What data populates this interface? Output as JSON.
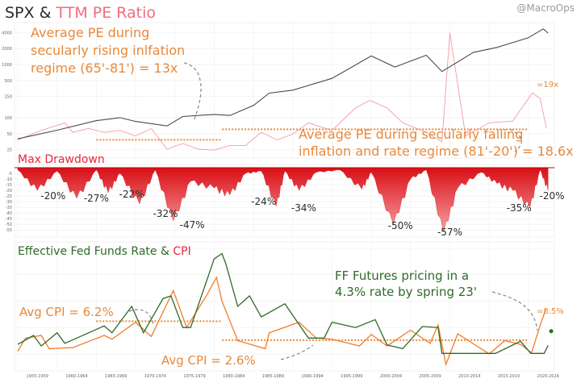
{
  "watermark": "@MacroOps",
  "colors": {
    "spx": "#4a4a4a",
    "pe": "#f28a96",
    "drawdown": "#e0161c",
    "fedfunds": "#2e6b24",
    "cpi": "#f07d2a",
    "annotation_orange": "#e8893a",
    "title_red": "#f06d7a"
  },
  "panel1": {
    "title_part1": "SPX & ",
    "title_part2": "TTM PE Ratio",
    "left_ticks": [
      "4000",
      "2000",
      "1000",
      "500",
      "250",
      "100",
      "50",
      "25"
    ],
    "annotation1": [
      "Average PE during",
      "secularly rising inlfation",
      "regime (65'-81') = 13x"
    ],
    "annotation2": [
      "Average PE during secularly falling",
      "inflation and rate regime (81'-20') = 18.6x"
    ],
    "current_pe": "=19x"
  },
  "panel2": {
    "title": "Max Drawdown",
    "left_ticks": [
      "-5",
      "-10",
      "-15",
      "-20",
      "-25",
      "-30",
      "-35",
      "-40",
      "-45",
      "-50",
      "-55"
    ],
    "labels": [
      "-20%",
      "-27%",
      "-22%",
      "-32%",
      "-47%",
      "-24%",
      "-34%",
      "-50%",
      "-57%",
      "-35%",
      "-20%"
    ]
  },
  "panel3": {
    "title_part1": "Effective Fed Funds Rate & ",
    "title_part2": "CPI",
    "annotation_ff": [
      "FF Futures pricing in a",
      "4.3% rate by spring 23'"
    ],
    "avg_cpi_1": "Avg CPI = 6.2%",
    "avg_cpi_2": "Avg CPI = 2.6%",
    "current_cpi": "=8.5%",
    "x_ticks": [
      "1955-1959",
      "1960-1964",
      "1965-1969",
      "1970-1974",
      "1975-1979",
      "1980-1984",
      "1985-1989",
      "1990-1994",
      "1995-1999",
      "2000-2004",
      "2005-2009",
      "2010-2014",
      "2015-2019",
      "2020-2024"
    ]
  },
  "chart_data": [
    {
      "type": "line",
      "title": "SPX & TTM PE Ratio",
      "log_scale": true,
      "series": [
        {
          "name": "SPX",
          "x": [
            1955,
            1960,
            1965,
            1968,
            1970,
            1974,
            1976,
            1980,
            1982,
            1985,
            1987,
            1990,
            1995,
            2000,
            2003,
            2007,
            2009,
            2013,
            2016,
            2020,
            2021.9,
            2022.5
          ],
          "values": [
            40,
            58,
            88,
            100,
            85,
            70,
            105,
            115,
            110,
            170,
            290,
            330,
            550,
            1450,
            900,
            1500,
            740,
            1700,
            2100,
            3200,
            4700,
            3900
          ]
        },
        {
          "name": "TTM PE Ratio",
          "x": [
            1955,
            1958,
            1961,
            1962,
            1964,
            1966,
            1968,
            1970,
            1972,
            1974,
            1976,
            1978,
            1980,
            1982,
            1984,
            1986,
            1988,
            1990,
            1992,
            1995,
            1998,
            1999.8,
            2002,
            2004,
            2007,
            2009,
            2010,
            2012,
            2015,
            2018,
            2020.5,
            2021.5,
            2022.3
          ],
          "values": [
            13,
            18,
            22,
            17,
            19,
            17,
            18,
            15,
            19,
            8,
            11,
            8,
            7.5,
            10,
            10,
            17,
            13,
            16,
            22,
            18,
            30,
            34,
            30,
            22,
            17,
            12,
            70,
            15,
            22,
            23,
            38,
            35,
            19
          ]
        }
      ],
      "reference_lines": [
        {
          "label": "Average PE 65'-81'",
          "y": 13,
          "x": [
            1965,
            1981
          ]
        },
        {
          "label": "Average PE 81'-20'",
          "y": 18.6,
          "x": [
            1981,
            2020
          ]
        }
      ],
      "annotations": [
        "Average PE during secularly rising inlfation regime (65'-81') = 13x",
        "Average PE during secularly falling inflation and rate regime (81'-20') = 18.6x",
        "=19x"
      ]
    },
    {
      "type": "area",
      "title": "Max Drawdown",
      "x": [
        1955,
        1957.5,
        1960,
        1962.5,
        1965,
        1966.5,
        1968,
        1970.5,
        1972.5,
        1974.8,
        1977,
        1980,
        1982,
        1984,
        1986,
        1987.9,
        1989,
        1990.8,
        1993,
        1996,
        1998.8,
        2000,
        2002.8,
        2005,
        2007,
        2009.2,
        2011,
        2014,
        2016,
        2018,
        2020.2,
        2021.5,
        2022.5
      ],
      "values": [
        -2,
        -20,
        -3,
        -27,
        -2,
        -22,
        -5,
        -32,
        -2,
        -47,
        -12,
        -18,
        -24,
        -5,
        -3,
        -34,
        -3,
        -20,
        -4,
        -2,
        -19,
        -4,
        -50,
        -10,
        -2,
        -57,
        -18,
        -4,
        -14,
        -20,
        -35,
        -2,
        -20
      ],
      "labels": [
        "-20%",
        "-27%",
        "-22%",
        "-32%",
        "-47%",
        "-24%",
        "-34%",
        "-50%",
        "-57%",
        "-35%",
        "-20%"
      ],
      "ylim": [
        -57,
        0
      ]
    },
    {
      "type": "line",
      "title": "Effective Fed Funds Rate & CPI",
      "series": [
        {
          "name": "Effective Fed Funds Rate",
          "x": [
            1955,
            1957,
            1958,
            1960,
            1961,
            1966,
            1967,
            1969.5,
            1971,
            1973.5,
            1974.5,
            1976,
            1977,
            1980,
            1981,
            1981.5,
            1983,
            1984.5,
            1986,
            1989,
            1992,
            1994,
            1995,
            1998,
            2000.5,
            2002,
            2004,
            2006.5,
            2008.5,
            2009,
            2015.8,
            2019,
            2020.3,
            2022,
            2022.5
          ],
          "values": [
            1.8,
            3.5,
            1.5,
            4,
            2,
            5.3,
            4,
            9,
            4,
            10.5,
            11,
            5,
            5,
            18,
            19,
            17,
            9,
            11,
            7,
            9.5,
            3,
            3,
            6,
            5,
            6.5,
            1.7,
            1,
            5.2,
            5,
            0.1,
            0.1,
            2.4,
            0.1,
            0.1,
            1.6
          ]
        },
        {
          "name": "CPI",
          "x": [
            1955,
            1956,
            1958,
            1959,
            1962,
            1966,
            1967,
            1970,
            1972,
            1974.8,
            1976.5,
            1979,
            1980.3,
            1981,
            1983,
            1986.5,
            1987,
            1990.8,
            1993,
            1995,
            1998.5,
            2000,
            2002,
            2005,
            2007.5,
            2008.5,
            2009.5,
            2011,
            2015,
            2017,
            2019,
            2020.4,
            2021.5,
            2022.2
          ],
          "values": [
            0.5,
            3,
            3.5,
            1,
            1.2,
            3.5,
            2.8,
            6,
            3.3,
            12,
            5,
            11,
            14.5,
            10,
            2.5,
            1,
            4,
            6,
            3,
            2.8,
            1.5,
            3.7,
            1.5,
            4.5,
            2,
            5.5,
            -2,
            3.8,
            0,
            2.5,
            1.8,
            0.2,
            5.4,
            8.5
          ]
        }
      ],
      "reference_lines": [
        {
          "label": "Avg CPI = 6.2%",
          "y": 6.2,
          "x": [
            1965,
            1981
          ]
        },
        {
          "label": "Avg CPI = 2.6%",
          "y": 2.6,
          "x": [
            1981,
            2020
          ]
        }
      ],
      "annotations": [
        "FF Futures pricing in a 4.3% rate by spring 23'",
        "Avg CPI = 6.2%",
        "Avg CPI = 2.6%",
        "=8.5%"
      ],
      "x_tick_labels": [
        "1955-1959",
        "1960-1964",
        "1965-1969",
        "1970-1974",
        "1975-1979",
        "1980-1984",
        "1985-1989",
        "1990-1994",
        "1995-1999",
        "2000-2004",
        "2005-2009",
        "2010-2014",
        "2015-2019",
        "2020-2024"
      ],
      "ylim": [
        -2,
        20
      ]
    }
  ]
}
